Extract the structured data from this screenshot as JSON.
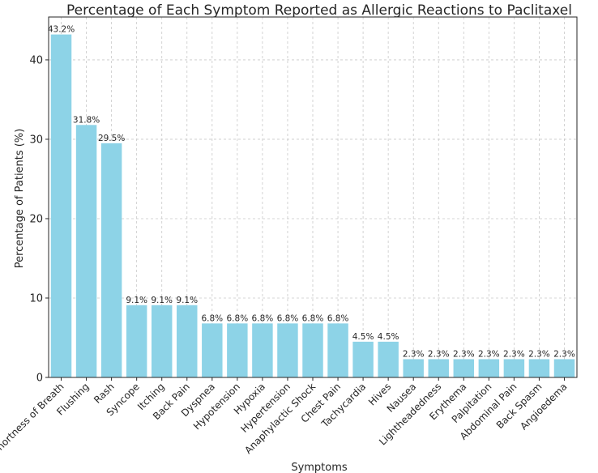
{
  "chart_data": {
    "type": "bar",
    "title": "Percentage of Each Symptom Reported as Allergic Reactions to Paclitaxel",
    "xlabel": "Symptoms",
    "ylabel": "Percentage of Patients (%)",
    "ylim": [
      0,
      45.4
    ],
    "yticks": [
      0,
      10,
      20,
      30,
      40
    ],
    "grid": true,
    "bar_color": "#8dd3e7",
    "categories": [
      "Shortness of Breath",
      "Flushing",
      "Rash",
      "Syncope",
      "Itching",
      "Back Pain",
      "Dyspnea",
      "Hypotension",
      "Hypoxia",
      "Hypertension",
      "Anaphylactic Shock",
      "Chest Pain",
      "Tachycardia",
      "Hives",
      "Nausea",
      "Lightheadedness",
      "Erythema",
      "Palpitation",
      "Abdominal Pain",
      "Back Spasm",
      "Angioedema"
    ],
    "values": [
      43.2,
      31.8,
      29.5,
      9.1,
      9.1,
      9.1,
      6.8,
      6.8,
      6.8,
      6.8,
      6.8,
      6.8,
      4.5,
      4.5,
      2.3,
      2.3,
      2.3,
      2.3,
      2.3,
      2.3,
      2.3
    ],
    "data_labels": [
      "43.2%",
      "31.8%",
      "29.5%",
      "9.1%",
      "9.1%",
      "9.1%",
      "6.8%",
      "6.8%",
      "6.8%",
      "6.8%",
      "6.8%",
      "6.8%",
      "4.5%",
      "4.5%",
      "2.3%",
      "2.3%",
      "2.3%",
      "2.3%",
      "2.3%",
      "2.3%",
      "2.3%"
    ]
  }
}
